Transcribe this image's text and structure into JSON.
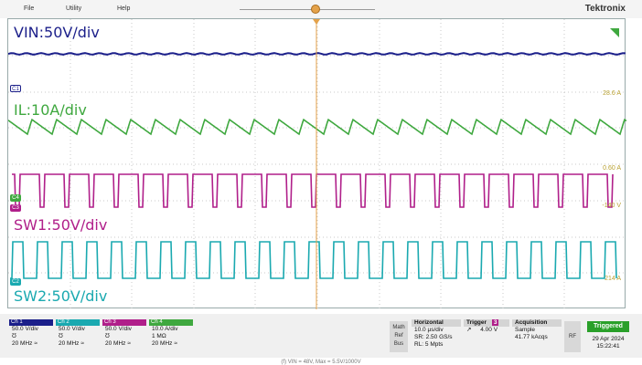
{
  "menu": {
    "file": "File",
    "utility": "Utility",
    "help": "Help"
  },
  "brand": "Tektronix",
  "overlay_labels": {
    "vin": "VIN:50V/div",
    "il": "IL:10A/div",
    "sw1": "SW1:50V/div",
    "sw2": "SW2:50V/div"
  },
  "channel_tags": {
    "c1": "C1",
    "c4": "C4",
    "c3": "C3",
    "c2": "C2"
  },
  "right_readouts": {
    "r1": "28.6 A",
    "r2": "0.60 A",
    "r3": "-140 V",
    "r4": "214 A"
  },
  "channels": [
    {
      "name": "Ch 1",
      "scale": "50.0 V/div",
      "coupling": "Ʊ",
      "bw": "20 MHz ≈",
      "color": "#1b1f8a"
    },
    {
      "name": "Ch 2",
      "scale": "50.0 V/div",
      "coupling": "Ʊ",
      "bw": "20 MHz ≈",
      "color": "#1aa9b0"
    },
    {
      "name": "Ch 3",
      "scale": "50.0 V/div",
      "coupling": "Ʊ",
      "bw": "20 MHz ≈",
      "color": "#b01f8a"
    },
    {
      "name": "Ch 4",
      "scale": "10.0 A/div",
      "coupling": "1 MΩ",
      "bw": "20 MHz ≈",
      "color": "#3fa83f"
    }
  ],
  "math_button": {
    "l1": "Math",
    "l2": "Ref",
    "l3": "Bus"
  },
  "horizontal": {
    "title": "Horizontal",
    "scale": "10.0 μs/div",
    "sample_rate": "SR: 2.50 GS/s",
    "record_length": "RL: 5 Mpts"
  },
  "trigger": {
    "title": "Trigger",
    "source": "3",
    "level": "4.00 V",
    "slope_icon": "rising-edge-icon"
  },
  "acquisition": {
    "title": "Acquisition",
    "mode": "Sample",
    "count": "41.77 kAcqs"
  },
  "rf_button": "RF",
  "status": "Triggered",
  "date": "29 Apr 2024",
  "time": "15:22:41",
  "caption": "(f) VIN = 48V, Max = 5.5V/1000V",
  "colors": {
    "ch1": "#1b1f8a",
    "ch2": "#1aa9b0",
    "ch3": "#b01f8a",
    "ch4": "#3fa83f",
    "grid": "#c8c8c8",
    "triggered": "#2aa02a"
  }
}
